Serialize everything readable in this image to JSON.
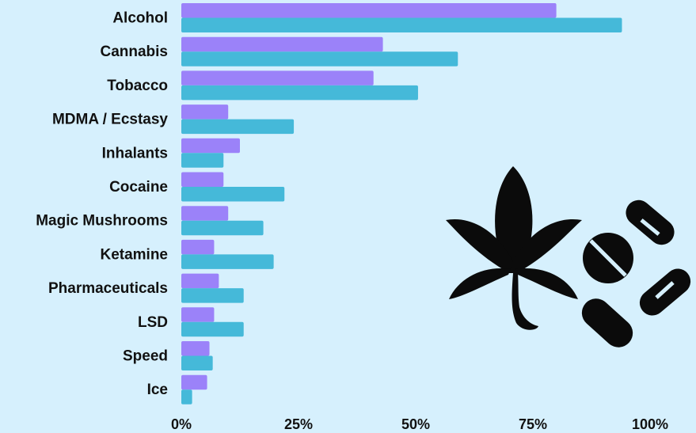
{
  "chart_data": {
    "type": "bar",
    "orientation": "horizontal",
    "categories": [
      "Alcohol",
      "Cannabis",
      "Tobacco",
      "MDMA / Ecstasy",
      "Inhalants",
      "Cocaine",
      "Magic Mushrooms",
      "Ketamine",
      "Pharmaceuticals",
      "LSD",
      "Speed",
      "Ice"
    ],
    "series": [
      {
        "values": [
          80,
          43,
          41,
          10,
          12.5,
          9,
          10,
          7,
          8,
          7,
          6,
          5.5
        ]
      },
      {
        "values": [
          94,
          59,
          50.5,
          24,
          9,
          22,
          17.5,
          19.7,
          13.3,
          13.3,
          6.7,
          2.3
        ]
      }
    ],
    "x_ticks": [
      "0%",
      "25%",
      "50%",
      "75%",
      "100%"
    ],
    "xlim": [
      0,
      100
    ],
    "grid": false,
    "legend": "none",
    "colors": {
      "series1": "#9b82f9",
      "series2": "#45b9d9",
      "background": "#d6f0fd",
      "text": "#111111",
      "icons": "#0b0b0b"
    },
    "decorations": [
      "cannabis-leaf-icon",
      "pills-icon"
    ]
  }
}
